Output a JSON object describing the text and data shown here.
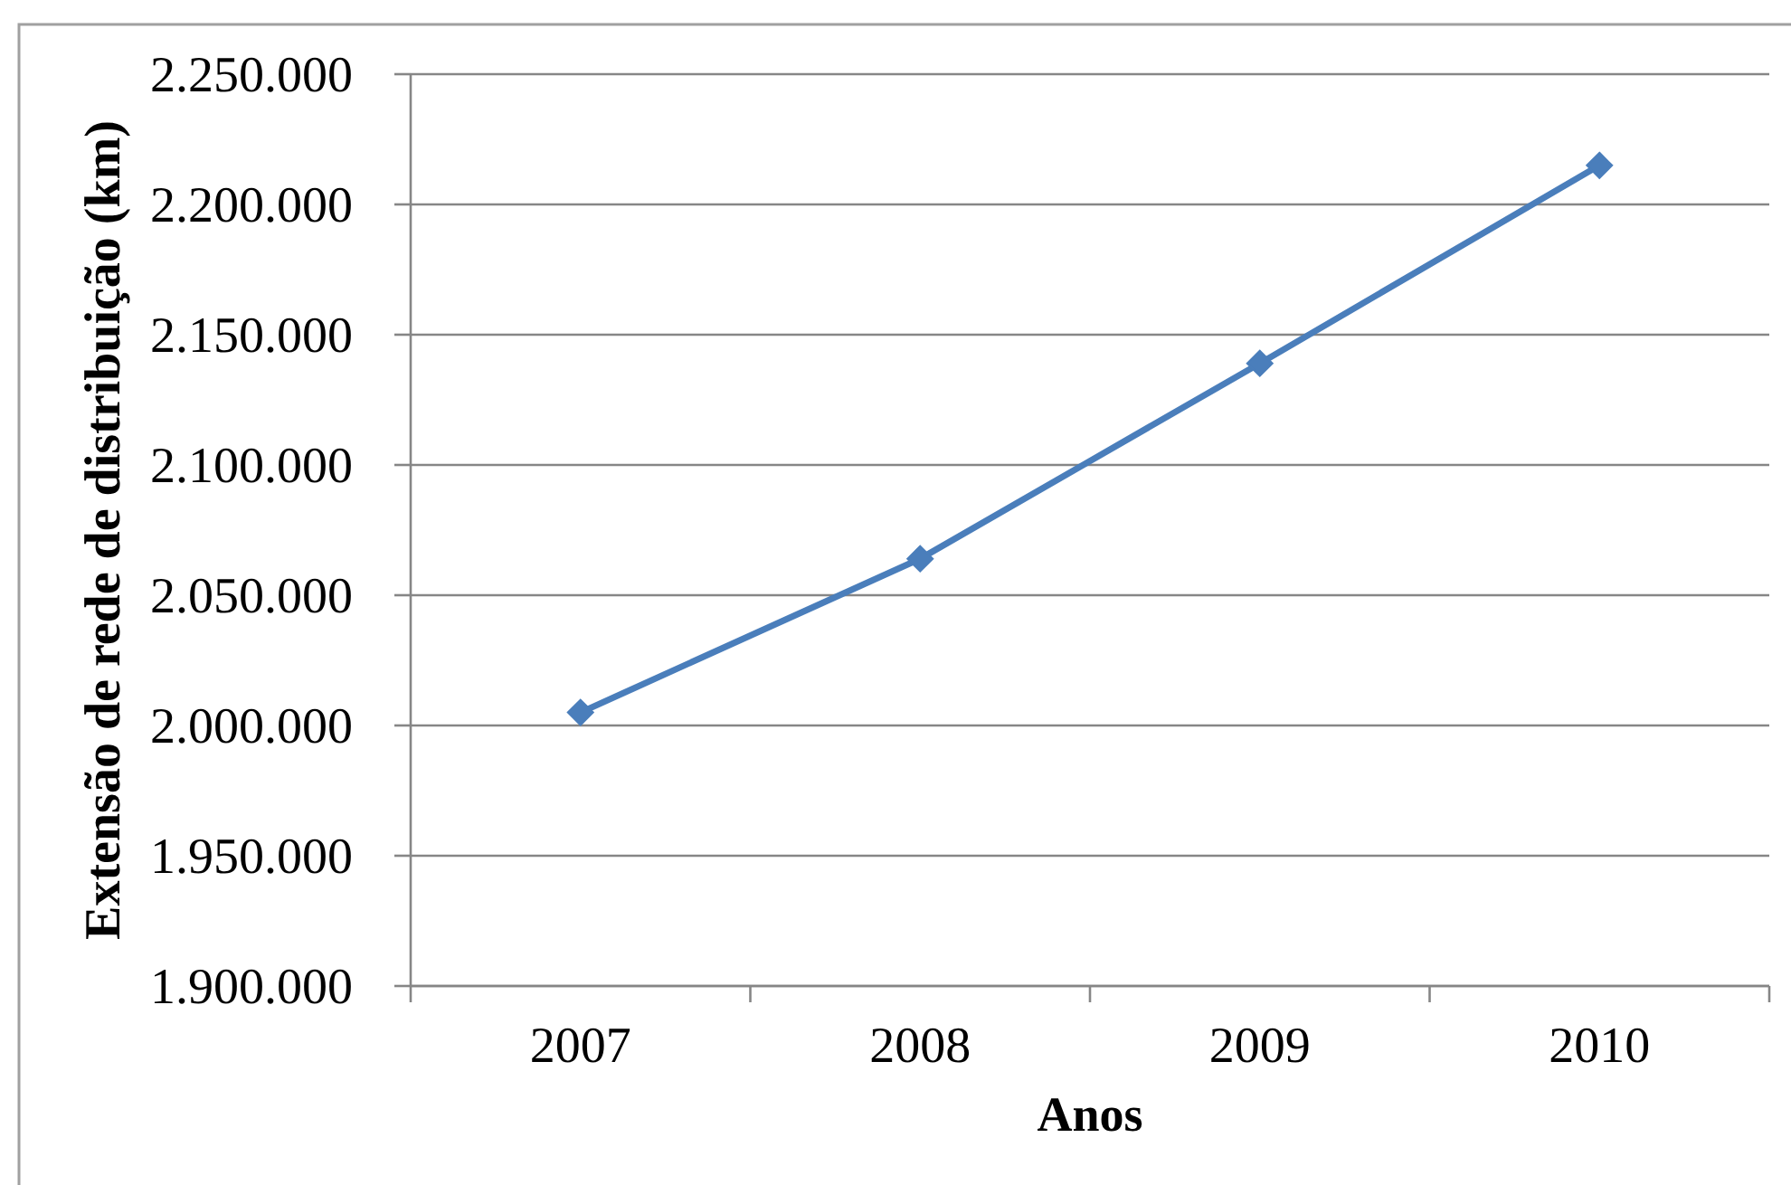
{
  "chart_data": {
    "type": "line",
    "xlabel": "Anos",
    "ylabel": "Extensão de rede de distribuição (km)",
    "categories": [
      "2007",
      "2008",
      "2009",
      "2010"
    ],
    "values": [
      2005000,
      2064000,
      2139000,
      2215000
    ],
    "color": "#4a7ebb",
    "ylim": [
      1900000,
      2250000
    ],
    "yticks": [
      {
        "value": 1900000,
        "label": "1.900.000"
      },
      {
        "value": 1950000,
        "label": "1.950.000"
      },
      {
        "value": 2000000,
        "label": "2.000.000"
      },
      {
        "value": 2050000,
        "label": "2.050.000"
      },
      {
        "value": 2100000,
        "label": "2.100.000"
      },
      {
        "value": 2150000,
        "label": "2.150.000"
      },
      {
        "value": 2200000,
        "label": "2.200.000"
      },
      {
        "value": 2250000,
        "label": "2.250.000"
      }
    ],
    "grid": "y",
    "marker": "diamond",
    "line_style": "solid"
  }
}
